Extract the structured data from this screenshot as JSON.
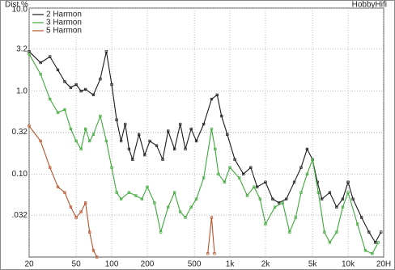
{
  "chart_data": {
    "type": "line",
    "title": "Dist.%",
    "brand": "HobbyHifi",
    "xscale": "log",
    "yscale": "log",
    "grid": true,
    "xlim": [
      20,
      20000
    ],
    "ylim": [
      0.01,
      10
    ],
    "xticks": [
      20,
      50,
      100,
      200,
      500,
      {
        "value": 1000,
        "label": "1k"
      },
      {
        "value": 2000,
        "label": "2k"
      },
      {
        "value": 5000,
        "label": "5k"
      },
      {
        "value": 10000,
        "label": "10k"
      },
      {
        "value": 20000,
        "label": "20H"
      }
    ],
    "yticks": [
      {
        "value": 10,
        "label": "10.0"
      },
      3.2,
      {
        "value": 1,
        "label": "1.0"
      },
      0.32,
      {
        "value": 0.1,
        "label": "0.10"
      },
      {
        "value": 0.032,
        "label": ".032"
      }
    ],
    "series": [
      {
        "name": "2 Harmon",
        "color": "#1a1a1a",
        "x": [
          20,
          25,
          30,
          35,
          40,
          45,
          50,
          55,
          60,
          70,
          80,
          90,
          100,
          110,
          120,
          130,
          140,
          150,
          170,
          190,
          210,
          240,
          270,
          300,
          340,
          380,
          420,
          470,
          520,
          600,
          700,
          780,
          850,
          950,
          1100,
          1300,
          1500,
          1700,
          2000,
          2300,
          2600,
          3000,
          3500,
          4000,
          4500,
          5000,
          5500,
          6000,
          7000,
          8000,
          9000,
          10000,
          11000,
          13000,
          15000,
          17000,
          19000
        ],
        "values": [
          3.0,
          2.2,
          2.6,
          1.8,
          1.3,
          1.1,
          1.2,
          1.0,
          1.05,
          0.9,
          1.4,
          3.0,
          1.2,
          0.45,
          0.25,
          0.4,
          0.2,
          0.15,
          0.3,
          0.17,
          0.25,
          0.22,
          0.15,
          0.33,
          0.2,
          0.4,
          0.2,
          0.35,
          0.25,
          0.4,
          0.8,
          0.9,
          0.5,
          0.3,
          0.15,
          0.1,
          0.12,
          0.07,
          0.08,
          0.05,
          0.045,
          0.05,
          0.08,
          0.12,
          0.2,
          0.15,
          0.08,
          0.05,
          0.06,
          0.04,
          0.05,
          0.08,
          0.05,
          0.03,
          0.02,
          0.015,
          0.02
        ]
      },
      {
        "name": "3 Harmon",
        "color": "#3fa83a",
        "x": [
          20,
          25,
          30,
          35,
          40,
          45,
          50,
          55,
          60,
          65,
          70,
          80,
          90,
          100,
          110,
          120,
          140,
          160,
          180,
          200,
          230,
          260,
          300,
          340,
          380,
          420,
          470,
          520,
          600,
          700,
          750,
          800,
          900,
          1000,
          1200,
          1400,
          1600,
          1800,
          2000,
          2400,
          2800,
          3200,
          3600,
          4000,
          4500,
          5000,
          5600,
          6300,
          7000,
          8000,
          9000,
          10000,
          12000,
          14000,
          16000,
          18000
        ],
        "values": [
          2.8,
          1.6,
          0.8,
          0.55,
          0.6,
          0.35,
          0.25,
          0.2,
          0.35,
          0.25,
          0.3,
          0.5,
          0.25,
          0.12,
          0.06,
          0.05,
          0.06,
          0.055,
          0.05,
          0.07,
          0.045,
          0.02,
          0.04,
          0.06,
          0.035,
          0.03,
          0.04,
          0.05,
          0.09,
          0.35,
          0.2,
          0.1,
          0.08,
          0.12,
          0.09,
          0.055,
          0.07,
          0.05,
          0.025,
          0.04,
          0.045,
          0.02,
          0.03,
          0.06,
          0.1,
          0.15,
          0.06,
          0.02,
          0.015,
          0.02,
          0.04,
          0.06,
          0.025,
          0.012,
          0.011,
          0.015
        ]
      },
      {
        "name": "5 Harmon",
        "color": "#b5532a",
        "x": [
          20,
          25,
          30,
          35,
          40,
          45,
          50,
          55,
          60,
          65,
          70,
          75,
          null,
          650,
          700,
          740
        ],
        "values": [
          0.38,
          0.25,
          0.12,
          0.07,
          0.06,
          0.04,
          0.03,
          0.035,
          0.045,
          0.02,
          0.012,
          0.01,
          null,
          0.011,
          0.03,
          0.011
        ]
      }
    ]
  }
}
